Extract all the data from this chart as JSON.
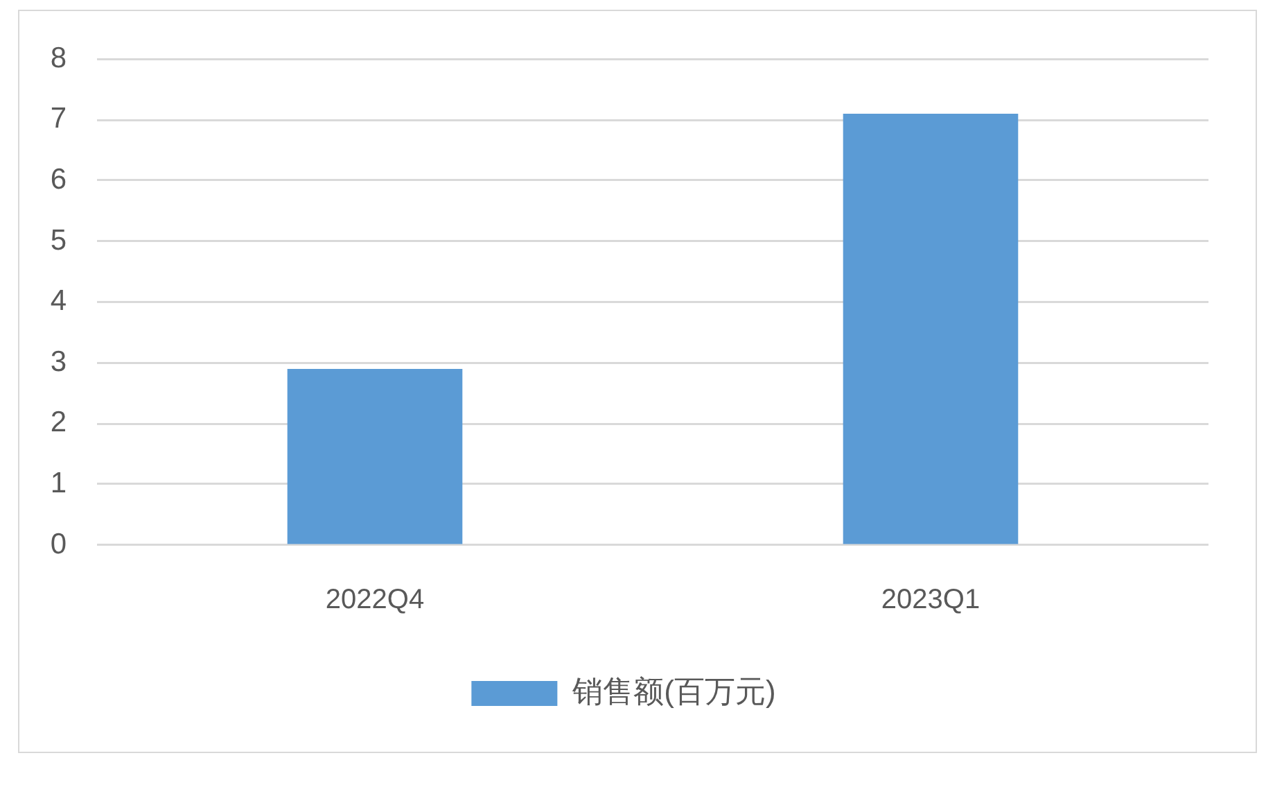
{
  "chart_data": {
    "type": "bar",
    "categories": [
      "2022Q4",
      "2023Q1"
    ],
    "series": [
      {
        "name": "销售额(百万元)",
        "color": "#5b9bd5",
        "values": [
          2.9,
          7.1
        ]
      }
    ],
    "ylim": [
      0,
      8
    ],
    "yticks": [
      0,
      1,
      2,
      3,
      4,
      5,
      6,
      7,
      8
    ],
    "grid": "y",
    "legend": "bottom"
  }
}
